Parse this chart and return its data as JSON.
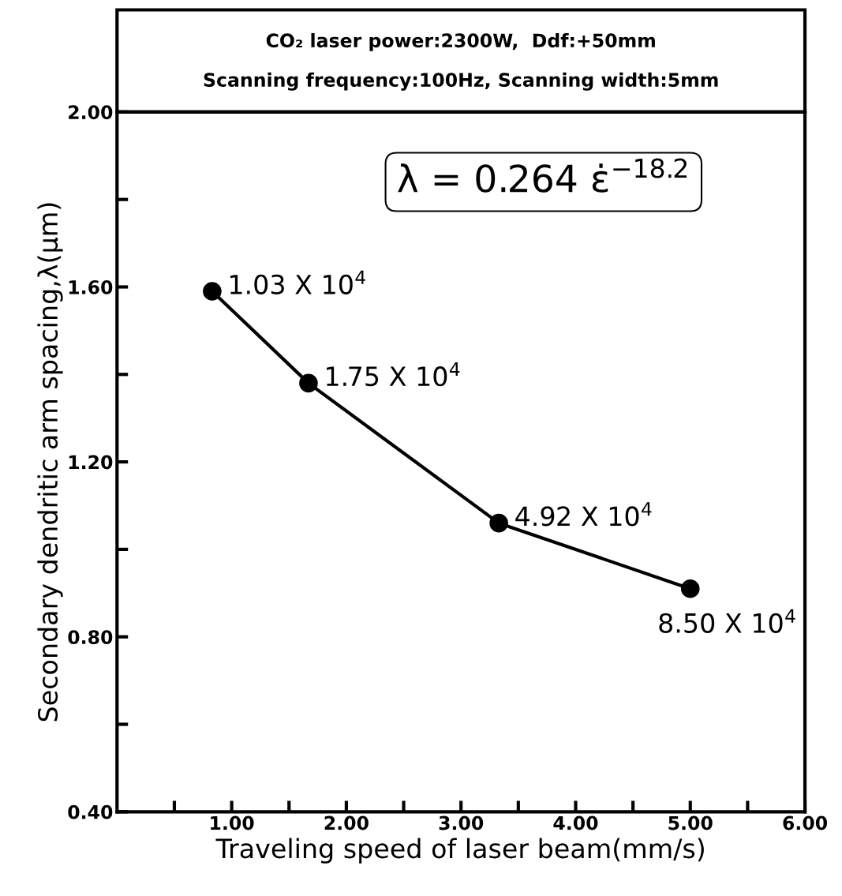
{
  "chart_data": {
    "type": "line",
    "title": "CO₂ laser power:2300W,  Ddf:+50mm",
    "subtitle": "Scanning frequency:100Hz, Scanning width:5mm",
    "xlabel": "Traveling speed of laser beam(mm/s)",
    "ylabel": "Secondary dendritic arm spacing,λ(μm)",
    "x": [
      0.83,
      1.67,
      3.33,
      5.0
    ],
    "series": [
      {
        "color": "#000000",
        "values": [
          1.59,
          1.38,
          1.06,
          0.91
        ]
      }
    ],
    "marker": "circle",
    "line_style": "solid",
    "grid": false,
    "legend": false,
    "xlim": [
      0,
      6
    ],
    "ylim": [
      0.4,
      2.0
    ],
    "xticks": [
      {
        "value": 0.5,
        "label": null
      },
      {
        "value": 1,
        "label": "1.00"
      },
      {
        "value": 1.5,
        "label": null
      },
      {
        "value": 2,
        "label": "2.00"
      },
      {
        "value": 2.5,
        "label": null
      },
      {
        "value": 3,
        "label": "3.00"
      },
      {
        "value": 3.5,
        "label": null
      },
      {
        "value": 4,
        "label": "4.00"
      },
      {
        "value": 4.5,
        "label": null
      },
      {
        "value": 5,
        "label": "5.00"
      },
      {
        "value": 5.5,
        "label": null
      },
      {
        "value": 6,
        "label": "6.00"
      }
    ],
    "yticks": [
      {
        "value": 0.4,
        "label": "0.40"
      },
      {
        "value": 0.6,
        "label": null
      },
      {
        "value": 0.8,
        "label": "0.80"
      },
      {
        "value": 1.0,
        "label": null
      },
      {
        "value": 1.2,
        "label": "1.20"
      },
      {
        "value": 1.4,
        "label": null
      },
      {
        "value": 1.6,
        "label": "1.60"
      },
      {
        "value": 1.8,
        "label": null
      },
      {
        "value": 2.0,
        "label": "2.00"
      }
    ],
    "annotations": [
      {
        "text": "1.03 X 10$^{4}$",
        "x": 0.83,
        "y": 1.59
      },
      {
        "text": "1.75 X 10$^{4}$",
        "x": 1.67,
        "y": 1.38
      },
      {
        "text": "4.92 X 10$^{4}$",
        "x": 3.33,
        "y": 1.06
      },
      {
        "text": "8.50 X 10$^{4}$",
        "x": 5.0,
        "y": 0.91
      },
      "λ = 0.264 ε̇$^{−18.2}$"
    ]
  }
}
